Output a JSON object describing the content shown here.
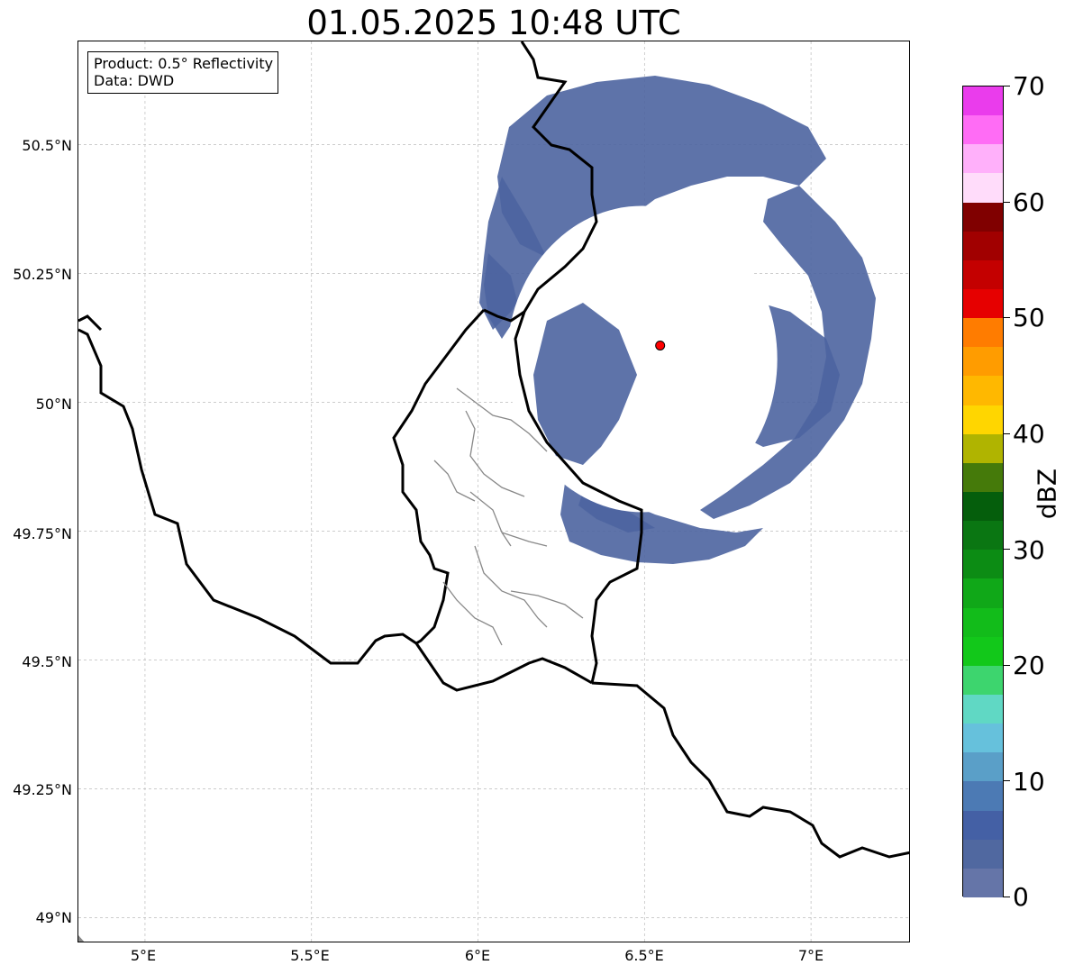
{
  "title": "01.05.2025 10:48 UTC",
  "info": {
    "product": "Product: 0.5° Reflectivity",
    "data": "Data: DWD"
  },
  "map": {
    "lon_range": [
      4.8,
      7.3
    ],
    "lat_range": [
      48.95,
      50.7
    ],
    "lat_ticks": [
      "50.5°N",
      "50.25°N",
      "50°N",
      "49.75°N",
      "49.5°N",
      "49.25°N",
      "49°N"
    ],
    "lon_ticks": [
      "5°E",
      "5.5°E",
      "6°E",
      "6.5°E",
      "7°E"
    ],
    "gridlines": true,
    "radar_site": {
      "lon": 6.547,
      "lat": 50.11,
      "color": "#ff0000"
    },
    "echo_color": "#4c64a0"
  },
  "colorbar": {
    "label": "dBZ",
    "min": 0,
    "max": 70,
    "tick_labels": [
      "0",
      "10",
      "20",
      "30",
      "40",
      "50",
      "60",
      "70"
    ],
    "colors": [
      "#6575a8",
      "#5068a0",
      "#4460a5",
      "#4c7ab4",
      "#5a9fc8",
      "#66c1dc",
      "#60d8c4",
      "#3dd56e",
      "#12c81a",
      "#12bc1a",
      "#10a818",
      "#0c8c14",
      "#0a7612",
      "#055e0c",
      "#457a0a",
      "#b0b400",
      "#ffd600",
      "#ffb800",
      "#ff9c00",
      "#ff7c00",
      "#e60000",
      "#c40000",
      "#a10000",
      "#800000",
      "#ffdcfa",
      "#ffb0fa",
      "#ff6cf5",
      "#ea3cec"
    ]
  }
}
